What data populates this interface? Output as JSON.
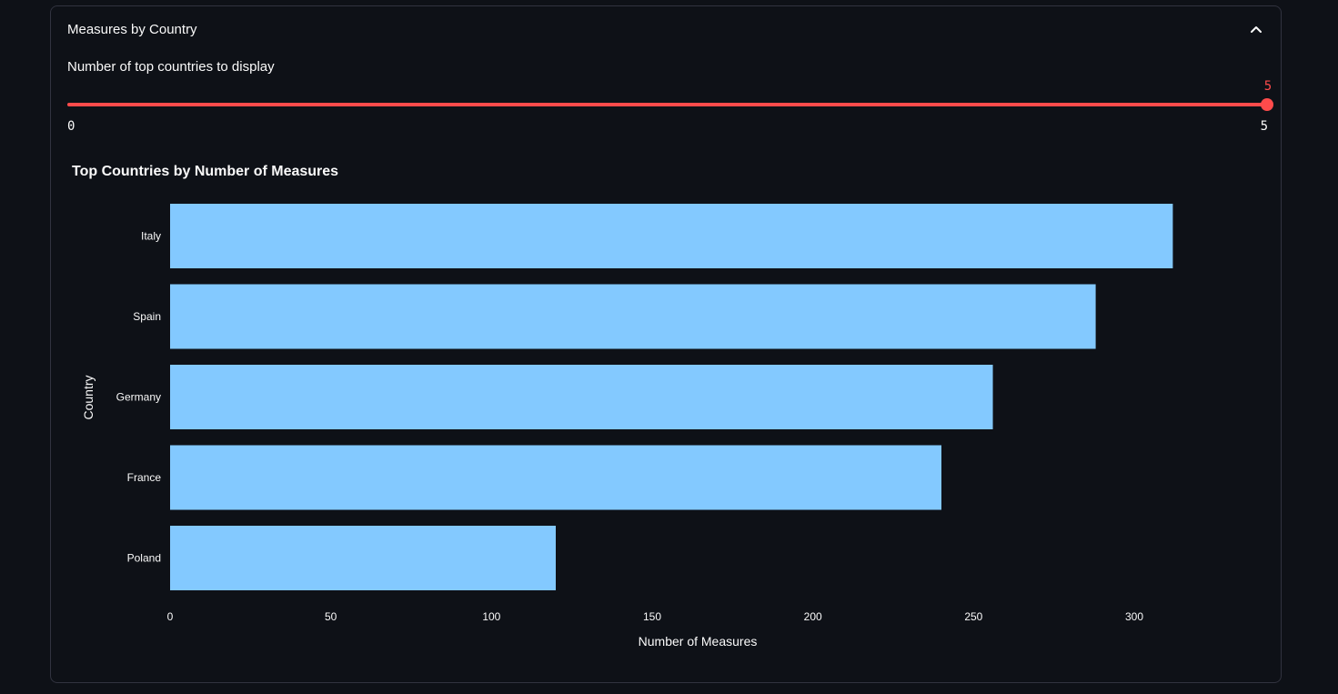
{
  "expander": {
    "title": "Measures by Country",
    "toggle_icon": "chevron-up-icon"
  },
  "slider": {
    "label": "Number of top countries to display",
    "value": "5",
    "min": "0",
    "max": "5",
    "accent_color": "#ff4b4b"
  },
  "chart_data": {
    "type": "bar",
    "orientation": "horizontal",
    "title": "Top Countries by Number of Measures",
    "xlabel": "Number of Measures",
    "ylabel": "Country",
    "categories": [
      "Italy",
      "Spain",
      "Germany",
      "France",
      "Poland"
    ],
    "values": [
      312,
      288,
      256,
      240,
      120
    ],
    "xlim": [
      0,
      340
    ],
    "xticks": [
      0,
      50,
      100,
      150,
      200,
      250,
      300
    ],
    "bar_color": "#83c9ff",
    "grid": false
  }
}
